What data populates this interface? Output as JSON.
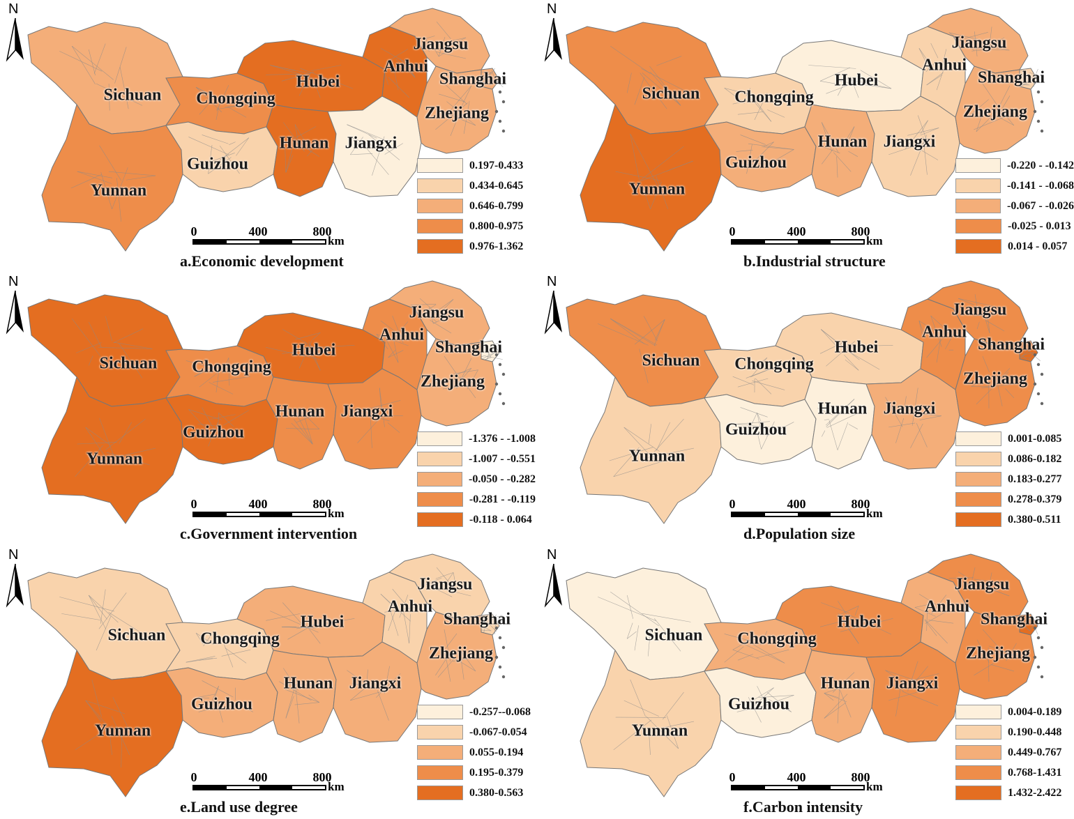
{
  "north_label": "N",
  "scale": {
    "ticks": [
      "0",
      "400",
      "800"
    ],
    "unit": "km"
  },
  "panels": [
    {
      "title": "a.Economic development",
      "legend": [
        "0.197-0.433",
        "0.434-0.645",
        "0.646-0.799",
        "0.800-0.975",
        "0.976-1.362"
      ],
      "provinces": {
        "Sichuan": 2,
        "Chongqing": 3,
        "Guizhou": 1,
        "Yunnan": 3,
        "Hubei": 4,
        "Hunan": 4,
        "Jiangxi": 0,
        "Anhui": 4,
        "Jiangsu": 2,
        "Zhejiang": 2,
        "Shanghai": 2
      }
    },
    {
      "title": "b.Industrial structure",
      "legend": [
        "-0.220 - -0.142",
        "-0.141 - -0.068",
        "-0.067 - -0.026",
        "-0.025 - 0.013",
        "0.014 - 0.057"
      ],
      "provinces": {
        "Sichuan": 3,
        "Chongqing": 1,
        "Guizhou": 2,
        "Yunnan": 4,
        "Hubei": 0,
        "Hunan": 2,
        "Jiangxi": 1,
        "Anhui": 1,
        "Jiangsu": 2,
        "Zhejiang": 2,
        "Shanghai": 1
      }
    },
    {
      "title": "c.Government intervention",
      "legend": [
        "-1.376 - -1.008",
        "-1.007 - -0.551",
        "-0.050 - -0.282",
        "-0.281 - -0.119",
        "-0.118 - 0.064"
      ],
      "provinces": {
        "Sichuan": 4,
        "Chongqing": 3,
        "Guizhou": 4,
        "Yunnan": 4,
        "Hubei": 4,
        "Hunan": 3,
        "Jiangxi": 3,
        "Anhui": 3,
        "Jiangsu": 2,
        "Zhejiang": 2,
        "Shanghai": 0
      }
    },
    {
      "title": "d.Population size",
      "legend": [
        "0.001-0.085",
        "0.086-0.182",
        "0.183-0.277",
        "0.278-0.379",
        "0.380-0.511"
      ],
      "provinces": {
        "Sichuan": 3,
        "Chongqing": 1,
        "Guizhou": 0,
        "Yunnan": 1,
        "Hubei": 1,
        "Hunan": 0,
        "Jiangxi": 2,
        "Anhui": 3,
        "Jiangsu": 3,
        "Zhejiang": 3,
        "Shanghai": 4
      }
    },
    {
      "title": "e.Land use degree",
      "legend": [
        "-0.257--0.068",
        "-0.067-0.054",
        "0.055-0.194",
        "0.195-0.379",
        "0.380-0.563"
      ],
      "provinces": {
        "Sichuan": 1,
        "Chongqing": 1,
        "Guizhou": 2,
        "Yunnan": 4,
        "Hubei": 2,
        "Hunan": 2,
        "Jiangxi": 2,
        "Anhui": 1,
        "Jiangsu": 1,
        "Zhejiang": 2,
        "Shanghai": 1
      }
    },
    {
      "title": "f.Carbon intensity",
      "legend": [
        "0.004-0.189",
        "0.190-0.448",
        "0.449-0.767",
        "0.768-1.431",
        "1.432-2.422"
      ],
      "provinces": {
        "Sichuan": 0,
        "Chongqing": 2,
        "Guizhou": 0,
        "Yunnan": 1,
        "Hubei": 3,
        "Hunan": 2,
        "Jiangxi": 3,
        "Anhui": 2,
        "Jiangsu": 3,
        "Zhejiang": 3,
        "Shanghai": 4
      }
    }
  ],
  "colors": {
    "classes": [
      "#fdf0dc",
      "#f9d3ac",
      "#f4ae79",
      "#ee8d4a",
      "#e46e21"
    ],
    "boundary": "#8a8a8a"
  }
}
